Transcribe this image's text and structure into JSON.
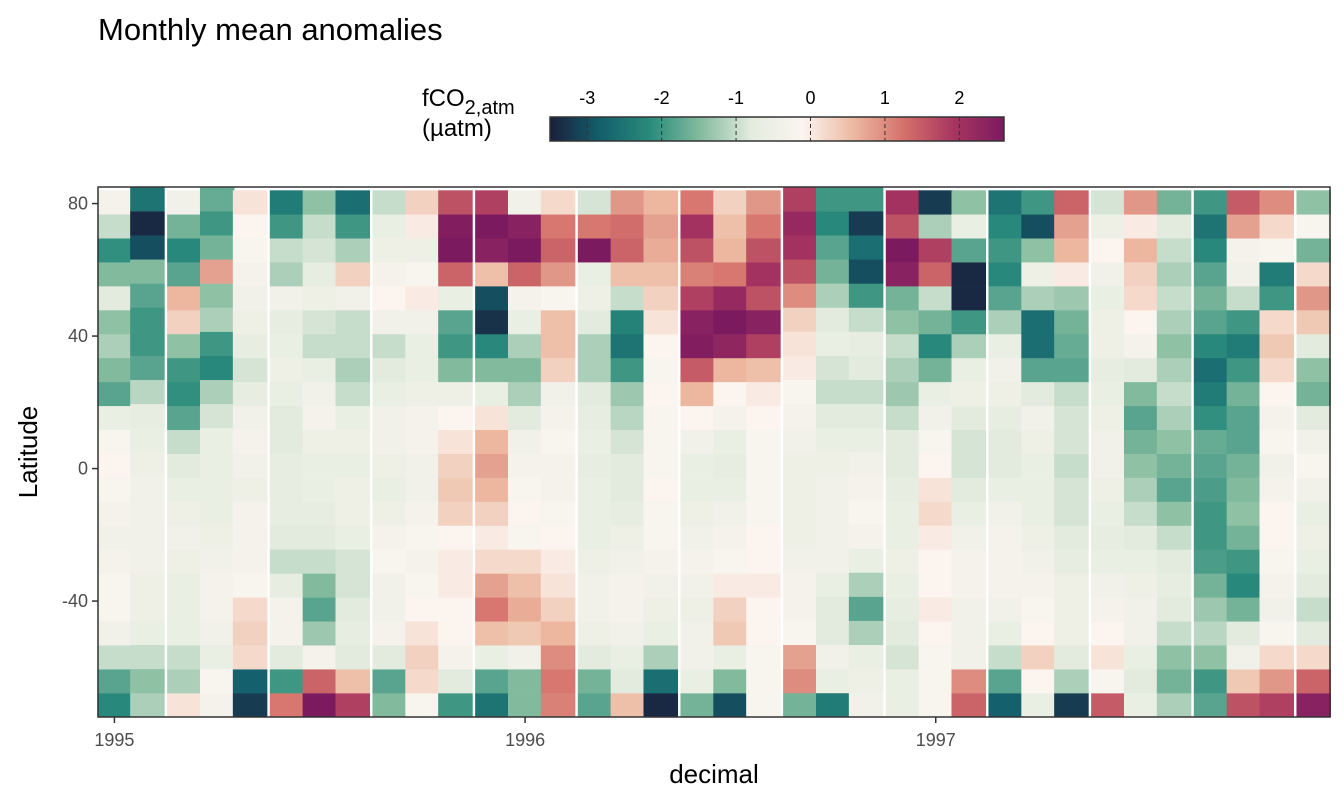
{
  "chart_data": {
    "type": "heatmap",
    "title": "Monthly mean anomalies",
    "xlabel": "decimal",
    "ylabel": "Latitude",
    "xlim": [
      1994.96,
      1997.96
    ],
    "ylim": [
      -75,
      85
    ],
    "x_ticks": [
      {
        "value": 1995,
        "label": "1995"
      },
      {
        "value": 1996,
        "label": "1996"
      },
      {
        "value": 1997,
        "label": "1997"
      }
    ],
    "y_ticks": [
      {
        "value": 80,
        "label": "80"
      },
      {
        "value": 40,
        "label": "40"
      },
      {
        "value": 0,
        "label": "0"
      },
      {
        "value": -40,
        "label": "-40"
      }
    ],
    "legend": {
      "title_main": "fCO",
      "title_sub": "2,atm",
      "title_unit": "(µatm)",
      "placement": "top",
      "range": [
        -3.5,
        2.6
      ],
      "ticks": [
        {
          "value": -3,
          "label": "-3"
        },
        {
          "value": -2,
          "label": "-2"
        },
        {
          "value": -1,
          "label": "-1"
        },
        {
          "value": 0,
          "label": "0"
        },
        {
          "value": 1,
          "label": "1"
        },
        {
          "value": 2,
          "label": "2"
        }
      ],
      "colors": [
        "#1a1f3c",
        "#135f6b",
        "#2a8c7c",
        "#86bc9f",
        "#e4ecdf",
        "#fbf5f0",
        "#edbaa2",
        "#d5726b",
        "#a83560",
        "#7c1a60"
      ]
    },
    "months": [
      {
        "x": 1995.0,
        "lat_min": -75,
        "lat_max": 84,
        "values": [
          -2.2,
          -1.8,
          -1.0,
          -0.4,
          -0.2,
          -0.2,
          -0.3,
          -0.4,
          -0.3,
          -0.2,
          -0.1,
          -0.2,
          -0.6,
          -1.8,
          -1.5,
          -1.2,
          -1.4,
          -0.8,
          -1.5,
          -2.1,
          -1.0,
          -0.3
        ]
      },
      {
        "x": 1995.08,
        "lat_min": -75,
        "lat_max": 85,
        "values": [
          -1.2,
          -1.4,
          -1.0,
          -0.6,
          -0.5,
          -0.5,
          -0.4,
          -0.4,
          -0.4,
          -0.4,
          -0.5,
          -0.6,
          -0.7,
          -1.1,
          -1.8,
          -2.0,
          -2.0,
          -1.8,
          -1.5,
          -3.0,
          -3.4,
          -2.5
        ]
      },
      {
        "x": 1995.17,
        "lat_min": -75,
        "lat_max": 84,
        "values": [
          0.1,
          -1.2,
          -1.0,
          -0.6,
          -0.6,
          -0.6,
          -0.5,
          -0.4,
          -0.5,
          -0.6,
          -0.8,
          -1.0,
          -1.8,
          -2.1,
          -2.0,
          -1.4,
          0.3,
          0.6,
          -1.8,
          -2.2,
          -1.6,
          -0.4
        ]
      },
      {
        "x": 1995.25,
        "lat_min": -75,
        "lat_max": 85,
        "values": [
          -0.3,
          -0.2,
          -0.6,
          -0.4,
          -0.3,
          -0.3,
          -0.4,
          -0.5,
          -0.6,
          -0.6,
          -0.6,
          -0.6,
          -0.9,
          -1.2,
          -2.2,
          -2.0,
          -1.2,
          -1.4,
          0.8,
          -1.6,
          -2.0,
          -1.7
        ]
      },
      {
        "x": 1995.33,
        "lat_min": -75,
        "lat_max": 84,
        "values": [
          -3.2,
          -2.8,
          0.2,
          0.3,
          0.2,
          -0.2,
          -0.3,
          -0.3,
          -0.3,
          -0.5,
          -0.4,
          -0.3,
          -0.4,
          -0.7,
          -0.9,
          -0.7,
          -0.5,
          -0.4,
          -0.3,
          -0.2,
          -0.1,
          0.1
        ]
      },
      {
        "x": 1995.42,
        "lat_min": -75,
        "lat_max": 84,
        "values": [
          1.2,
          -2.0,
          -0.8,
          -0.3,
          -0.3,
          -0.7,
          -1.0,
          -0.8,
          -0.7,
          -0.7,
          -0.7,
          -0.8,
          -0.8,
          -0.6,
          -0.5,
          -0.6,
          -0.7,
          -0.4,
          -1.2,
          -1.0,
          -2.0,
          -2.4
        ]
      },
      {
        "x": 1995.5,
        "lat_min": -75,
        "lat_max": 84,
        "values": [
          2.8,
          1.4,
          -0.3,
          -1.3,
          -1.8,
          -1.5,
          -1.0,
          -0.8,
          -0.7,
          -0.6,
          -0.6,
          -0.5,
          -0.3,
          -0.4,
          -0.6,
          -1.0,
          -0.9,
          -0.5,
          -0.7,
          -0.9,
          -1.0,
          -1.4
        ]
      },
      {
        "x": 1995.58,
        "lat_min": -75,
        "lat_max": 84,
        "values": [
          1.8,
          0.5,
          -0.8,
          -0.7,
          -0.8,
          -0.9,
          -0.9,
          -0.6,
          -0.5,
          -0.5,
          -0.6,
          -0.5,
          -0.6,
          -1.0,
          -1.2,
          -1.0,
          -1.0,
          -0.4,
          0.3,
          -1.2,
          -2.0,
          -2.6
        ]
      },
      {
        "x": 1995.67,
        "lat_min": -75,
        "lat_max": 84,
        "values": [
          -1.5,
          -1.8,
          -0.8,
          -0.3,
          -0.4,
          -0.4,
          -0.2,
          -0.3,
          -0.5,
          -0.6,
          -0.5,
          -0.4,
          -0.4,
          -0.6,
          -0.8,
          -1.0,
          -0.4,
          -0.1,
          -0.3,
          -0.5,
          -0.6,
          -1.0
        ]
      },
      {
        "x": 1995.75,
        "lat_min": -75,
        "lat_max": 84,
        "values": [
          -0.2,
          0.2,
          0.3,
          0.1,
          -0.1,
          -0.2,
          -0.3,
          -0.2,
          -0.3,
          -0.4,
          -0.4,
          -0.3,
          -0.3,
          -0.5,
          -0.6,
          -0.6,
          -0.4,
          0.0,
          -0.2,
          -0.5,
          0.0,
          0.3
        ]
      },
      {
        "x": 1995.83,
        "lat_min": -75,
        "lat_max": 84,
        "values": [
          -2.0,
          -0.8,
          -0.3,
          -0.1,
          -0.1,
          0.0,
          0.0,
          -0.1,
          0.3,
          0.4,
          0.3,
          0.1,
          -0.1,
          -0.5,
          -1.5,
          -2.0,
          -1.8,
          -0.6,
          1.4,
          2.6,
          2.5,
          1.6
        ]
      },
      {
        "x": 1995.92,
        "lat_min": -75,
        "lat_max": 84,
        "values": [
          -2.5,
          -1.8,
          -0.6,
          0.5,
          1.2,
          0.8,
          0.2,
          0.0,
          0.3,
          0.6,
          0.8,
          0.6,
          0.1,
          -0.6,
          -1.5,
          -2.2,
          -3.3,
          -3.0,
          0.5,
          2.4,
          2.8,
          1.8
        ]
      },
      {
        "x": 1996.0,
        "lat_min": -75,
        "lat_max": 84,
        "values": [
          -1.5,
          -1.5,
          -0.4,
          0.4,
          0.7,
          0.5,
          0.2,
          -0.2,
          -0.1,
          -0.2,
          -0.3,
          -0.4,
          -0.8,
          -1.2,
          -1.5,
          -1.2,
          -0.6,
          -0.3,
          1.4,
          2.6,
          2.4,
          -0.4
        ]
      },
      {
        "x": 1996.08,
        "lat_min": -75,
        "lat_max": 84,
        "values": [
          1.1,
          1.2,
          1.0,
          0.6,
          0.3,
          0.1,
          0.0,
          -0.1,
          -0.2,
          -0.3,
          -0.3,
          -0.2,
          -0.3,
          -0.4,
          0.3,
          0.5,
          0.5,
          -0.2,
          0.9,
          1.4,
          1.2,
          0.2
        ]
      },
      {
        "x": 1996.17,
        "lat_min": -75,
        "lat_max": 84,
        "values": [
          -1.8,
          -1.6,
          -0.8,
          -0.5,
          -0.4,
          -0.4,
          -0.5,
          -0.6,
          -0.6,
          -0.6,
          -0.7,
          -0.6,
          -0.7,
          -0.8,
          -1.2,
          -1.2,
          -0.8,
          -0.5,
          -0.6,
          2.6,
          1.2,
          -0.9
        ]
      },
      {
        "x": 1996.25,
        "lat_min": -75,
        "lat_max": 84,
        "values": [
          0.5,
          -0.8,
          -0.6,
          -0.4,
          -0.3,
          -0.3,
          -0.4,
          -0.5,
          -0.7,
          -0.8,
          -0.8,
          -0.9,
          -1.1,
          -1.3,
          -2.0,
          -2.5,
          -2.3,
          -1.0,
          0.5,
          1.4,
          1.3,
          0.9
        ]
      },
      {
        "x": 1996.33,
        "lat_min": -75,
        "lat_max": 84,
        "values": [
          -3.4,
          -2.6,
          -1.2,
          -0.6,
          -0.5,
          -0.4,
          -0.3,
          -0.2,
          -0.2,
          -0.1,
          -0.2,
          -0.2,
          -0.2,
          -0.1,
          -0.2,
          -0.1,
          0.1,
          0.3,
          0.5,
          0.7,
          0.8,
          0.6
        ]
      },
      {
        "x": 1996.42,
        "lat_min": -75,
        "lat_max": 84,
        "values": [
          -1.6,
          -0.6,
          -0.4,
          -0.4,
          -0.5,
          -0.4,
          -0.3,
          -0.4,
          -0.5,
          -0.6,
          -0.6,
          -0.4,
          -0.1,
          0.6,
          1.5,
          2.5,
          2.4,
          1.8,
          1.1,
          1.6,
          2.0,
          1.2
        ]
      },
      {
        "x": 1996.5,
        "lat_min": -75,
        "lat_max": 84,
        "values": [
          -3.0,
          -1.5,
          -0.6,
          0.4,
          0.3,
          0.0,
          -0.2,
          -0.3,
          -0.4,
          -0.6,
          -0.7,
          -0.6,
          -0.3,
          -0.1,
          0.6,
          2.3,
          2.6,
          2.2,
          1.2,
          0.6,
          0.5,
          0.3
        ]
      },
      {
        "x": 1996.58,
        "lat_min": -75,
        "lat_max": 84,
        "values": [
          -0.2,
          -0.2,
          -0.2,
          -0.1,
          -0.1,
          0.0,
          -0.1,
          -0.1,
          -0.2,
          -0.2,
          -0.2,
          -0.2,
          -0.1,
          0.0,
          0.5,
          1.8,
          2.4,
          1.6,
          2.0,
          1.6,
          1.2,
          0.9
        ]
      },
      {
        "x": 1996.67,
        "lat_min": -75,
        "lat_max": 85,
        "values": [
          -1.6,
          1.0,
          0.8,
          -0.2,
          -0.3,
          -0.3,
          -0.4,
          -0.5,
          -0.5,
          -0.5,
          -0.5,
          -0.4,
          -0.3,
          -0.2,
          0.0,
          0.1,
          0.3,
          1.0,
          1.6,
          2.0,
          2.2,
          1.8
        ]
      },
      {
        "x": 1996.75,
        "lat_min": -75,
        "lat_max": 85,
        "values": [
          -2.4,
          -0.6,
          -0.4,
          -0.8,
          -0.8,
          -0.6,
          -0.4,
          -0.4,
          -0.4,
          -0.4,
          -0.5,
          -0.6,
          -0.8,
          -1.0,
          -0.9,
          -0.6,
          -0.8,
          -1.2,
          -1.6,
          -1.8,
          -2.2,
          -2.0
        ]
      },
      {
        "x": 1996.83,
        "lat_min": -75,
        "lat_max": 85,
        "values": [
          -0.4,
          -0.5,
          -0.6,
          -1.2,
          -1.8,
          -1.2,
          -0.6,
          -0.3,
          -0.2,
          -0.3,
          -0.4,
          -0.6,
          -0.8,
          -1.0,
          -0.8,
          -0.7,
          -1.0,
          -2.0,
          -3.0,
          -2.6,
          -3.2,
          -2.0
        ]
      },
      {
        "x": 1996.92,
        "lat_min": -75,
        "lat_max": 84,
        "values": [
          -0.6,
          -0.6,
          -0.9,
          -0.8,
          -0.7,
          -0.6,
          -0.5,
          -0.6,
          -0.6,
          -0.7,
          -0.8,
          -0.8,
          -1.0,
          -1.3,
          -1.2,
          -1.0,
          -1.4,
          -1.6,
          2.4,
          2.7,
          1.6,
          2.0
        ]
      },
      {
        "x": 1997.0,
        "lat_min": -75,
        "lat_max": 84,
        "values": [
          -0.2,
          -0.2,
          -0.2,
          -0.1,
          0.0,
          -0.1,
          -0.1,
          0.0,
          0.2,
          0.1,
          -0.1,
          -0.2,
          -0.4,
          -0.6,
          -1.6,
          -2.2,
          -1.6,
          -1.0,
          1.4,
          1.8,
          -1.2,
          -3.2
        ]
      },
      {
        "x": 1997.08,
        "lat_min": -75,
        "lat_max": 84,
        "values": [
          1.4,
          1.0,
          -0.4,
          -0.4,
          -0.4,
          -0.3,
          -0.3,
          -0.4,
          -0.6,
          -0.8,
          -0.9,
          -0.9,
          -0.8,
          -0.5,
          -0.6,
          -1.2,
          -2.0,
          -3.4,
          -3.4,
          -1.8,
          -0.6,
          -1.4
        ]
      },
      {
        "x": 1997.17,
        "lat_min": -75,
        "lat_max": 84,
        "values": [
          -2.8,
          -1.8,
          -1.0,
          -0.6,
          -0.4,
          -0.3,
          -0.3,
          -0.3,
          -0.4,
          -0.6,
          -0.8,
          -0.8,
          -0.7,
          -0.5,
          -0.4,
          -0.6,
          -1.2,
          -1.8,
          -2.2,
          -2.0,
          -2.2,
          -2.5
        ]
      },
      {
        "x": 1997.25,
        "lat_min": -75,
        "lat_max": 84,
        "values": [
          -0.6,
          -0.1,
          0.3,
          -0.1,
          -0.2,
          -0.3,
          -0.4,
          -0.5,
          -0.6,
          -0.6,
          -0.6,
          -0.5,
          -0.4,
          -0.8,
          -1.8,
          -2.6,
          -2.6,
          -1.2,
          -0.5,
          -1.4,
          -3.0,
          -2.0
        ]
      },
      {
        "x": 1997.33,
        "lat_min": -75,
        "lat_max": 84,
        "values": [
          -3.2,
          -1.2,
          -0.8,
          -0.5,
          -0.5,
          -0.5,
          -0.7,
          -0.8,
          -0.9,
          -0.9,
          -1.0,
          -0.9,
          -0.9,
          -1.0,
          -1.8,
          -1.7,
          -1.6,
          -1.3,
          0.0,
          0.6,
          0.8,
          1.4
        ]
      },
      {
        "x": 1997.42,
        "lat_min": -75,
        "lat_max": 84,
        "values": [
          1.5,
          -0.2,
          0.1,
          -0.1,
          -0.3,
          -0.4,
          -0.6,
          -0.7,
          -0.6,
          -0.5,
          -0.4,
          -0.4,
          -0.5,
          -0.6,
          -0.7,
          -0.5,
          -0.5,
          -0.6,
          -0.4,
          -0.1,
          -0.5,
          -0.9
        ]
      },
      {
        "x": 1997.5,
        "lat_min": -75,
        "lat_max": 84,
        "values": [
          -0.6,
          -0.8,
          -0.6,
          -0.4,
          -0.4,
          -0.5,
          -0.6,
          -0.8,
          -1.0,
          -1.2,
          -1.4,
          -1.6,
          -1.8,
          -1.5,
          -0.8,
          -0.3,
          -0.1,
          0.2,
          0.3,
          0.6,
          0.0,
          0.9
        ]
      },
      {
        "x": 1997.58,
        "lat_min": -75,
        "lat_max": 84,
        "values": [
          -1.2,
          -1.6,
          -1.4,
          -1.0,
          -0.8,
          -0.7,
          -0.8,
          -1.0,
          -1.4,
          -1.8,
          -1.6,
          -1.4,
          -1.2,
          -1.0,
          -1.2,
          -1.4,
          -1.2,
          -1.0,
          -1.2,
          -1.0,
          -0.8,
          -1.6
        ]
      },
      {
        "x": 1997.67,
        "lat_min": -75,
        "lat_max": 84,
        "values": [
          -1.8,
          -2.0,
          -1.4,
          -1.1,
          -1.3,
          -1.6,
          -1.9,
          -2.0,
          -2.0,
          -1.9,
          -1.8,
          -1.7,
          -2.1,
          -2.4,
          -2.6,
          -2.2,
          -1.8,
          -1.6,
          -1.8,
          -2.2,
          -2.5,
          -2.0
        ]
      },
      {
        "x": 1997.75,
        "lat_min": -75,
        "lat_max": 84,
        "values": [
          1.6,
          0.4,
          -0.4,
          -0.8,
          -1.6,
          -2.2,
          -2.0,
          -1.6,
          -1.4,
          -1.5,
          -1.6,
          -1.8,
          -1.8,
          -1.6,
          -2.0,
          -2.4,
          -2.0,
          -1.0,
          -0.4,
          -0.3,
          0.8,
          1.5
        ]
      },
      {
        "x": 1997.83,
        "lat_min": -75,
        "lat_max": 84,
        "values": [
          1.8,
          0.9,
          0.2,
          -0.2,
          -0.4,
          -0.3,
          -0.2,
          -0.1,
          -0.1,
          -0.3,
          -0.4,
          -0.2,
          -0.3,
          -0.1,
          0.2,
          0.4,
          0.2,
          -2.0,
          -2.4,
          -0.2,
          0.2,
          1.0
        ]
      },
      {
        "x": 1997.92,
        "lat_min": -75,
        "lat_max": 84,
        "values": [
          2.4,
          1.4,
          0.2,
          -0.8,
          -1.0,
          -0.8,
          -0.6,
          -0.5,
          -0.6,
          -0.4,
          -0.2,
          -0.4,
          -0.8,
          -1.6,
          -1.4,
          -0.8,
          0.4,
          0.9,
          0.2,
          -1.6,
          -0.2,
          -1.4
        ]
      }
    ]
  }
}
